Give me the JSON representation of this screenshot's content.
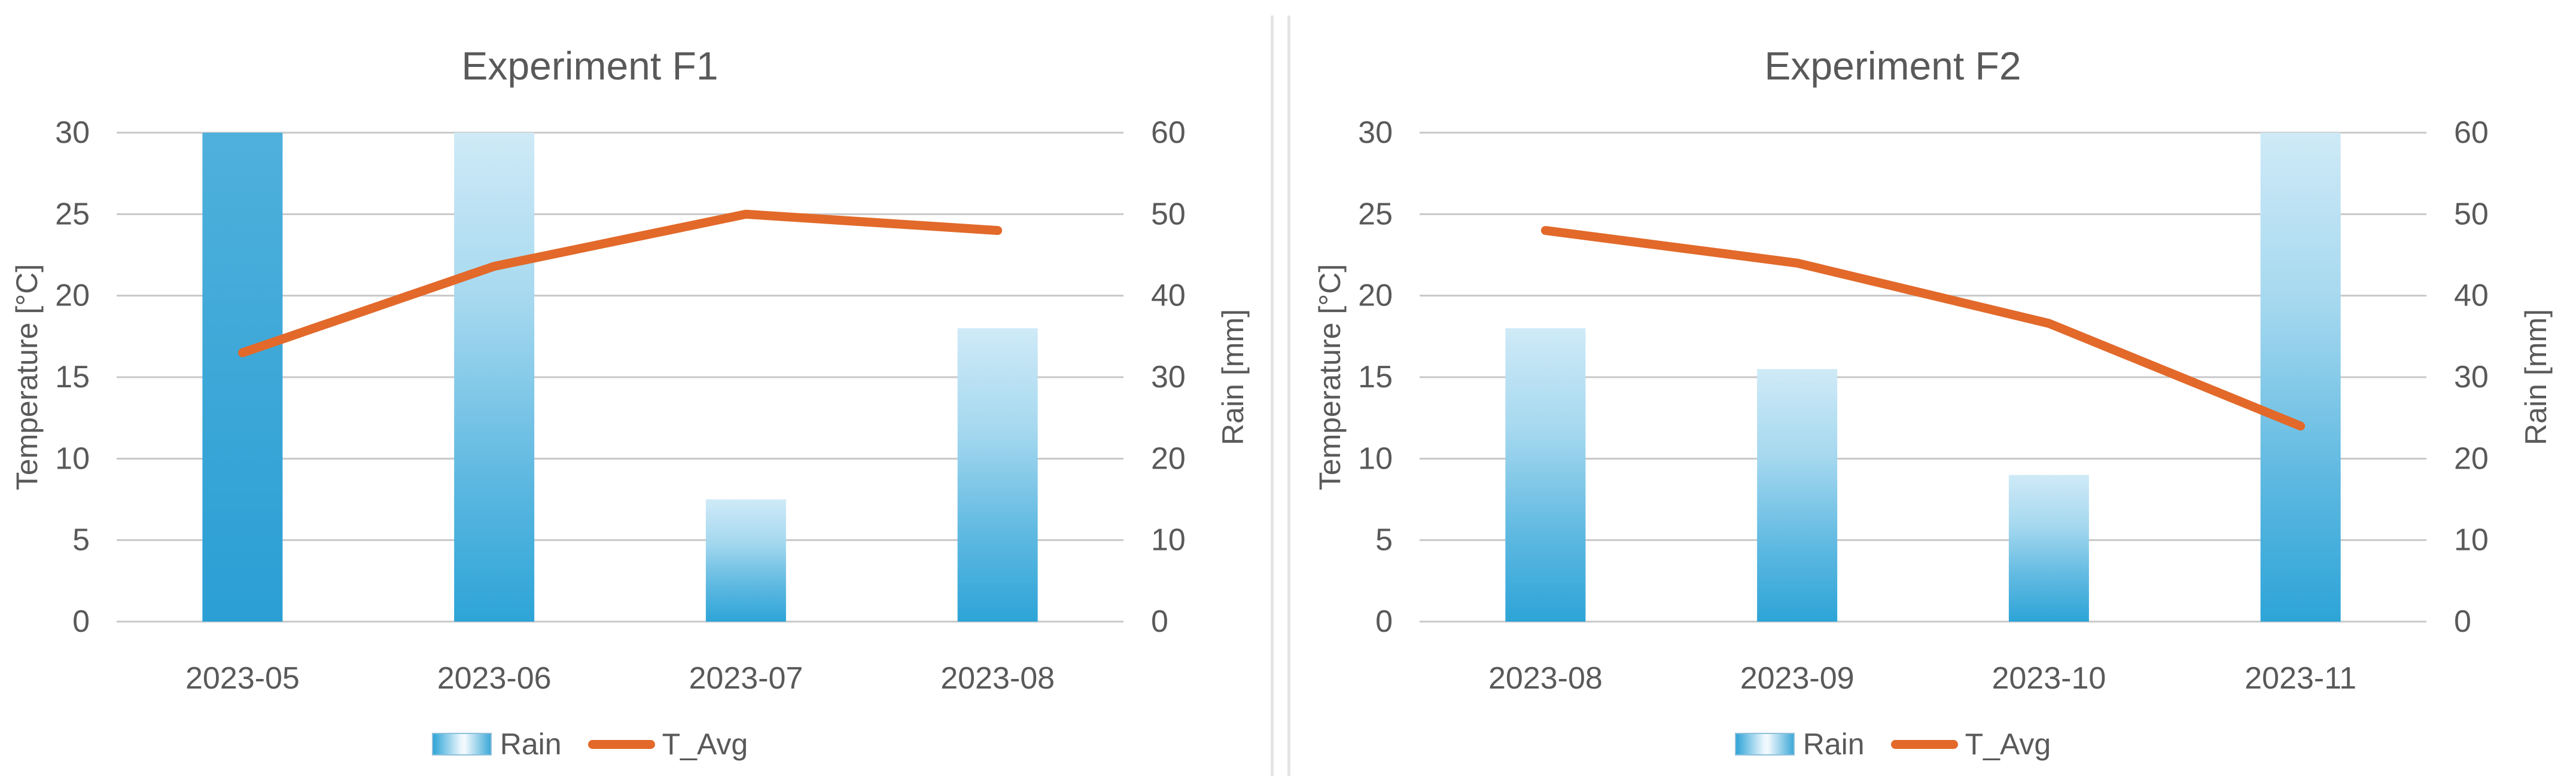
{
  "figure_background": "#ffffff",
  "colors": {
    "background": "#ffffff",
    "text": "#595959",
    "grid": "#c8c8c8",
    "divider": "#e4e4e4",
    "line": "#e2692a",
    "bar_gradient_top": "#cfeaf7",
    "bar_gradient_mid1": "#a5d8ef",
    "bar_gradient_mid2": "#5fb9e1",
    "bar_gradient_bottom": "#2da4d7",
    "bar_clipped_top": "#4fb0dc",
    "bar_clipped_bottom": "#2b9fd4"
  },
  "chart_data": [
    {
      "type": "combo-bar-line",
      "title": "Experiment F1",
      "categories": [
        "2023-05",
        "2023-06",
        "2023-07",
        "2023-08"
      ],
      "series": [
        {
          "name": "Rain",
          "type": "bar",
          "axis": "right",
          "unit": "mm",
          "values": [
            60,
            60,
            15,
            36
          ],
          "clipped_at_top": [
            true,
            false,
            false,
            false
          ]
        },
        {
          "name": "T_Avg",
          "type": "line",
          "axis": "left",
          "unit": "°C",
          "values": [
            16.5,
            21.8,
            25,
            24
          ]
        }
      ],
      "axes": {
        "left": {
          "title": "Temperature [°C]",
          "min": 0,
          "max": 30,
          "tick_step": 5,
          "tick_labels": [
            "0",
            "5",
            "10",
            "15",
            "20",
            "25",
            "30"
          ]
        },
        "right": {
          "title": "Rain [mm]",
          "min": 0,
          "max": 60,
          "tick_step": 10,
          "tick_labels": [
            "0",
            "10",
            "20",
            "30",
            "40",
            "50",
            "60"
          ]
        }
      },
      "grid": true,
      "legend_position": "bottom",
      "legend": [
        "Rain",
        "T_Avg"
      ]
    },
    {
      "type": "combo-bar-line",
      "title": "Experiment F2",
      "categories": [
        "2023-08",
        "2023-09",
        "2023-10",
        "2023-11"
      ],
      "series": [
        {
          "name": "Rain",
          "type": "bar",
          "axis": "right",
          "unit": "mm",
          "values": [
            36,
            31,
            18,
            60
          ],
          "clipped_at_top": [
            false,
            false,
            false,
            false
          ]
        },
        {
          "name": "T_Avg",
          "type": "line",
          "axis": "left",
          "unit": "°C",
          "values": [
            24,
            22,
            18.3,
            12
          ]
        }
      ],
      "axes": {
        "left": {
          "title": "Temperature [°C]",
          "min": 0,
          "max": 30,
          "tick_step": 5,
          "tick_labels": [
            "0",
            "5",
            "10",
            "15",
            "20",
            "25",
            "30"
          ]
        },
        "right": {
          "title": "Rain [mm]",
          "min": 0,
          "max": 60,
          "tick_step": 10,
          "tick_labels": [
            "0",
            "10",
            "20",
            "30",
            "40",
            "50",
            "60"
          ]
        }
      },
      "grid": true,
      "legend_position": "bottom",
      "legend": [
        "Rain",
        "T_Avg"
      ]
    }
  ]
}
